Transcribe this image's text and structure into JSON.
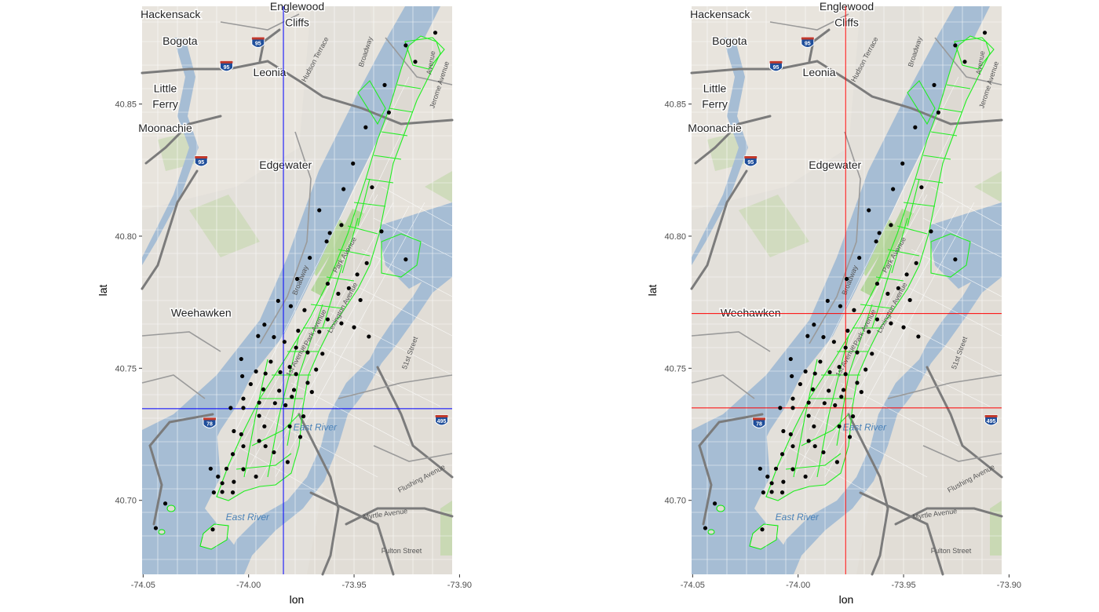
{
  "axes": {
    "x_title": "lon",
    "y_title": "lat",
    "x_ticks": [
      "-74.05",
      "-74.00",
      "-73.95",
      "-73.90"
    ],
    "y_ticks": [
      "40.70",
      "40.75",
      "40.80",
      "40.85"
    ],
    "x_tick_values": [
      -74.05,
      -74.0,
      -73.95,
      -73.9
    ],
    "y_tick_values": [
      40.7,
      40.75,
      40.8,
      40.85
    ],
    "xlim": [
      -74.0505,
      -73.9035
    ],
    "ylim": [
      40.672,
      40.887
    ]
  },
  "map": {
    "place_labels": [
      {
        "text": "Hackensack",
        "lon": -74.037,
        "lat": 40.8825
      },
      {
        "text": "Bogota",
        "lon": -74.0325,
        "lat": 40.8725
      },
      {
        "text": "Englewood",
        "lon": -73.977,
        "lat": 40.8855
      },
      {
        "text": "Cliffs",
        "lon": -73.977,
        "lat": 40.8795
      },
      {
        "text": "Leonia",
        "lon": -73.99,
        "lat": 40.8605
      },
      {
        "text": "Little",
        "lon": -74.0395,
        "lat": 40.8545
      },
      {
        "text": "Ferry",
        "lon": -74.0395,
        "lat": 40.8485
      },
      {
        "text": "Moonachie",
        "lon": -74.0395,
        "lat": 40.8395
      },
      {
        "text": "Edgewater",
        "lon": -73.9825,
        "lat": 40.8255
      },
      {
        "text": "Weehawken",
        "lon": -74.0225,
        "lat": 40.7695
      }
    ],
    "water_labels": [
      {
        "text": "East River",
        "lon": -73.9685,
        "lat": 40.7265
      },
      {
        "text": "East River",
        "lon": -74.0005,
        "lat": 40.6925
      }
    ],
    "street_labels": [
      {
        "text": "Myrtle Avenue",
        "lon": -73.935,
        "lat": 40.694,
        "angle": -8
      },
      {
        "text": "Flushing Avenue",
        "lon": -73.9175,
        "lat": 40.7075,
        "angle": -28
      },
      {
        "text": "Fulton Street",
        "lon": -73.9275,
        "lat": 40.68,
        "angle": 0
      },
      {
        "text": "51st Street",
        "lon": -73.9225,
        "lat": 40.7555,
        "angle": -70
      },
      {
        "text": "Jerome Avenue",
        "lon": -73.9085,
        "lat": 40.857,
        "angle": -72
      },
      {
        "text": "Broadway",
        "lon": -73.9435,
        "lat": 40.8695,
        "angle": -72
      },
      {
        "text": "Broadway",
        "lon": -73.9745,
        "lat": 40.783,
        "angle": -68
      },
      {
        "text": "Hudson Terrace",
        "lon": -73.9675,
        "lat": 40.8665,
        "angle": -62
      },
      {
        "text": "Park Avenue",
        "lon": -73.9535,
        "lat": 40.7925,
        "angle": -60
      },
      {
        "text": "Park Avenue",
        "lon": -73.9675,
        "lat": 40.765,
        "angle": -62
      },
      {
        "text": "Lexington Avenue",
        "lon": -73.9545,
        "lat": 40.7725,
        "angle": -62
      },
      {
        "text": "1st Avenue",
        "lon": -73.9765,
        "lat": 40.7525,
        "angle": -62
      },
      {
        "text": "Avenue",
        "lon": -73.9125,
        "lat": 40.8655,
        "angle": -80
      }
    ],
    "shields": [
      {
        "text": "95",
        "lon": -73.9955,
        "lat": 40.8732
      },
      {
        "text": "95",
        "lon": -74.0105,
        "lat": 40.8642
      },
      {
        "text": "95",
        "lon": -74.0225,
        "lat": 40.8282
      },
      {
        "text": "78",
        "lon": -74.0185,
        "lat": 40.7292
      },
      {
        "text": "495",
        "lon": -73.9085,
        "lat": 40.7302
      }
    ]
  },
  "chart_data": [
    {
      "type": "scatter",
      "title": "",
      "xlabel": "lon",
      "ylabel": "lat",
      "xlim": [
        -74.0505,
        -73.9035
      ],
      "ylim": [
        40.672,
        40.887
      ],
      "crosshair_color": "#0000ff",
      "crosshair": {
        "v_lon": [
          -73.9835
        ],
        "h_lat": [
          40.7347
        ]
      },
      "points_lon_lat": [
        [
          -73.9255,
          40.8722
        ],
        [
          -73.9115,
          40.877
        ],
        [
          -73.921,
          40.866
        ],
        [
          -73.9355,
          40.8572
        ],
        [
          -73.9335,
          40.8468
        ],
        [
          -73.9445,
          40.8412
        ],
        [
          -73.9505,
          40.8275
        ],
        [
          -73.955,
          40.8178
        ],
        [
          -73.9415,
          40.8185
        ],
        [
          -73.9665,
          40.8098
        ],
        [
          -73.956,
          40.8042
        ],
        [
          -73.937,
          40.8018
        ],
        [
          -73.9615,
          40.8012
        ],
        [
          -73.963,
          40.798
        ],
        [
          -73.971,
          40.7918
        ],
        [
          -73.9255,
          40.7912
        ],
        [
          -73.944,
          40.7898
        ],
        [
          -73.9485,
          40.7855
        ],
        [
          -73.977,
          40.7838
        ],
        [
          -73.9625,
          40.782
        ],
        [
          -73.9525,
          40.7803
        ],
        [
          -73.9575,
          40.7782
        ],
        [
          -73.947,
          40.7758
        ],
        [
          -73.986,
          40.7755
        ],
        [
          -73.98,
          40.7735
        ],
        [
          -73.9735,
          40.772
        ],
        [
          -73.9625,
          40.7685
        ],
        [
          -73.956,
          40.767
        ],
        [
          -73.95,
          40.7655
        ],
        [
          -73.9925,
          40.7665
        ],
        [
          -73.9765,
          40.7642
        ],
        [
          -73.9665,
          40.7638
        ],
        [
          -73.943,
          40.762
        ],
        [
          -73.9955,
          40.7622
        ],
        [
          -73.988,
          40.7618
        ],
        [
          -73.983,
          40.76
        ],
        [
          -73.9775,
          40.7578
        ],
        [
          -73.972,
          40.756
        ],
        [
          -73.965,
          40.7555
        ],
        [
          -74.0035,
          40.7535
        ],
        [
          -73.9895,
          40.7525
        ],
        [
          -73.9805,
          40.7505
        ],
        [
          -73.968,
          40.7495
        ],
        [
          -73.9965,
          40.7488
        ],
        [
          -73.992,
          40.748
        ],
        [
          -74.003,
          40.747
        ],
        [
          -73.985,
          40.7485
        ],
        [
          -73.9775,
          40.7478
        ],
        [
          -73.972,
          40.7445
        ],
        [
          -73.999,
          40.744
        ],
        [
          -73.993,
          40.742
        ],
        [
          -73.9855,
          40.7415
        ],
        [
          -73.9785,
          40.7418
        ],
        [
          -73.97,
          40.741
        ],
        [
          -74.0025,
          40.7385
        ],
        [
          -73.9795,
          40.7392
        ],
        [
          -73.995,
          40.737
        ],
        [
          -73.9875,
          40.7368
        ],
        [
          -73.9825,
          40.736
        ],
        [
          -74.0085,
          40.735
        ],
        [
          -74.0025,
          40.735
        ],
        [
          -73.974,
          40.7318
        ],
        [
          -73.995,
          40.732
        ],
        [
          -74.007,
          40.7262
        ],
        [
          -74.0035,
          40.725
        ],
        [
          -73.9925,
          40.728
        ],
        [
          -73.9805,
          40.728
        ],
        [
          -73.9755,
          40.724
        ],
        [
          -73.995,
          40.7225
        ],
        [
          -74.0025,
          40.7205
        ],
        [
          -73.992,
          40.7205
        ],
        [
          -74.0075,
          40.7175
        ],
        [
          -73.988,
          40.7182
        ],
        [
          -73.9815,
          40.7145
        ],
        [
          -74.018,
          40.712
        ],
        [
          -74.0105,
          40.712
        ],
        [
          -74.0025,
          40.7118
        ],
        [
          -73.9965,
          40.709
        ],
        [
          -74.0145,
          40.709
        ],
        [
          -74.0125,
          40.7065
        ],
        [
          -74.007,
          40.707
        ],
        [
          -74.0075,
          40.703
        ],
        [
          -74.0165,
          40.703
        ],
        [
          -74.0125,
          40.7032
        ],
        [
          -74.0395,
          40.6988
        ],
        [
          -74.044,
          40.6895
        ],
        [
          -74.017,
          40.689
        ]
      ]
    },
    {
      "type": "scatter",
      "title": "",
      "xlabel": "lon",
      "ylabel": "lat",
      "xlim": [
        -74.0505,
        -73.9035
      ],
      "ylim": [
        40.672,
        40.887
      ],
      "crosshair_color": "#ff0000",
      "crosshair": {
        "v_lon": [
          -73.9775
        ],
        "h_lat": [
          40.7707,
          40.735
        ]
      },
      "points_lon_lat": "same as panel 1"
    }
  ]
}
